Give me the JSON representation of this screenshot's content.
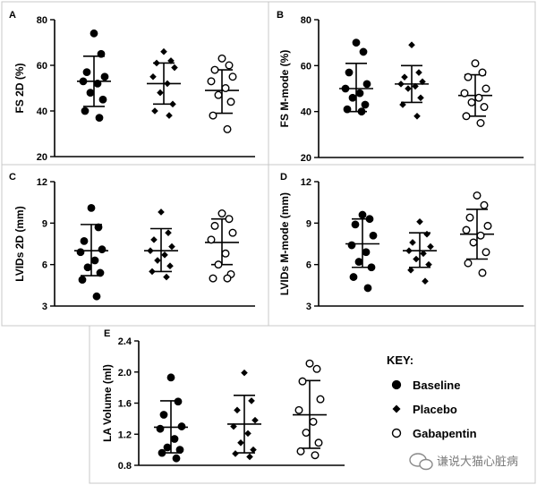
{
  "chart_data": [
    {
      "type": "scatter",
      "panel": "A",
      "ylabel": "FS 2D (%)",
      "ylim": [
        20,
        80
      ],
      "yticks": [
        20,
        40,
        60,
        80
      ],
      "groups": [
        {
          "name": "Baseline",
          "mean": 53,
          "sd_low": 42,
          "sd_high": 64,
          "points": [
            74,
            65,
            57,
            55,
            53,
            52,
            48,
            45,
            40,
            37
          ]
        },
        {
          "name": "Placebo",
          "mean": 52,
          "sd_low": 43,
          "sd_high": 61,
          "points": [
            66,
            62,
            61,
            59,
            55,
            52,
            48,
            43,
            40,
            38
          ]
        },
        {
          "name": "Gabapentin",
          "mean": 49,
          "sd_low": 39,
          "sd_high": 58,
          "points": [
            63,
            60,
            58,
            55,
            53,
            50,
            47,
            44,
            38,
            32
          ]
        }
      ]
    },
    {
      "type": "scatter",
      "panel": "B",
      "ylabel": "FS M-mode (%)",
      "ylim": [
        20,
        80
      ],
      "yticks": [
        20,
        40,
        60,
        80
      ],
      "groups": [
        {
          "name": "Baseline",
          "mean": 50,
          "sd_low": 40,
          "sd_high": 61,
          "points": [
            70,
            66,
            57,
            52,
            50,
            48,
            46,
            43,
            41,
            40
          ]
        },
        {
          "name": "Placebo",
          "mean": 52,
          "sd_low": 44,
          "sd_high": 60,
          "points": [
            69,
            57,
            55,
            53,
            52,
            51,
            50,
            46,
            43,
            38
          ]
        },
        {
          "name": "Gabapentin",
          "mean": 47,
          "sd_low": 38,
          "sd_high": 56,
          "points": [
            61,
            57,
            55,
            50,
            48,
            46,
            44,
            42,
            38,
            35
          ]
        }
      ]
    },
    {
      "type": "scatter",
      "panel": "C",
      "ylabel": "LVIDs 2D (mm)",
      "ylim": [
        3,
        12
      ],
      "yticks": [
        3,
        6,
        9,
        12
      ],
      "groups": [
        {
          "name": "Baseline",
          "mean": 7.0,
          "sd_low": 5.2,
          "sd_high": 8.9,
          "points": [
            10.1,
            8.7,
            7.7,
            7.1,
            6.9,
            6.3,
            5.8,
            5.4,
            4.9,
            3.7
          ]
        },
        {
          "name": "Placebo",
          "mean": 7.0,
          "sd_low": 5.5,
          "sd_high": 8.6,
          "points": [
            9.8,
            8.3,
            7.8,
            7.3,
            7.0,
            6.7,
            6.3,
            5.9,
            5.5,
            5.1
          ]
        },
        {
          "name": "Gabapentin",
          "mean": 7.6,
          "sd_low": 6.0,
          "sd_high": 9.3,
          "points": [
            9.7,
            9.3,
            8.8,
            8.3,
            7.8,
            6.8,
            6.0,
            5.3,
            5.0,
            5.0
          ]
        }
      ]
    },
    {
      "type": "scatter",
      "panel": "D",
      "ylabel": "LVIDs M-mode (mm)",
      "ylim": [
        3,
        12
      ],
      "yticks": [
        3,
        6,
        9,
        12
      ],
      "groups": [
        {
          "name": "Baseline",
          "mean": 7.5,
          "sd_low": 5.8,
          "sd_high": 9.3,
          "points": [
            9.6,
            9.3,
            8.9,
            8.1,
            7.4,
            6.9,
            6.2,
            5.8,
            5.1,
            4.3
          ]
        },
        {
          "name": "Placebo",
          "mean": 7.0,
          "sd_low": 5.8,
          "sd_high": 8.3,
          "points": [
            9.1,
            8.2,
            7.6,
            7.3,
            7.0,
            6.8,
            6.4,
            6.0,
            5.6,
            4.8
          ]
        },
        {
          "name": "Gabapentin",
          "mean": 8.2,
          "sd_low": 6.4,
          "sd_high": 10.0,
          "points": [
            11.0,
            10.3,
            9.4,
            8.8,
            8.5,
            8.1,
            7.6,
            6.9,
            6.1,
            5.4
          ]
        }
      ]
    },
    {
      "type": "scatter",
      "panel": "E",
      "ylabel": "LA Volume (ml)",
      "ylim": [
        0.8,
        2.4
      ],
      "yticks": [
        0.8,
        1.2,
        1.6,
        2.0,
        2.4
      ],
      "groups": [
        {
          "name": "Baseline",
          "mean": 1.29,
          "sd_low": 0.96,
          "sd_high": 1.63,
          "points": [
            1.93,
            1.62,
            1.45,
            1.3,
            1.27,
            1.14,
            1.03,
            1.0,
            0.96,
            0.89
          ]
        },
        {
          "name": "Placebo",
          "mean": 1.33,
          "sd_low": 0.96,
          "sd_high": 1.7,
          "points": [
            1.99,
            1.63,
            1.51,
            1.38,
            1.3,
            1.21,
            1.09,
            1.0,
            0.95,
            0.91
          ]
        },
        {
          "name": "Gabapentin",
          "mean": 1.45,
          "sd_low": 1.02,
          "sd_high": 1.89,
          "points": [
            2.11,
            2.04,
            1.88,
            1.65,
            1.51,
            1.36,
            1.22,
            1.09,
            0.98,
            0.93
          ]
        }
      ]
    }
  ],
  "key": {
    "title": "KEY:",
    "items": [
      {
        "label": "Baseline",
        "marker": "filled-circle"
      },
      {
        "label": "Placebo",
        "marker": "filled-diamond"
      },
      {
        "label": "Gabapentin",
        "marker": "open-circle"
      }
    ]
  },
  "watermark": {
    "text": "谦说大猫心脏病",
    "icon": "chat-bubble-icon"
  }
}
